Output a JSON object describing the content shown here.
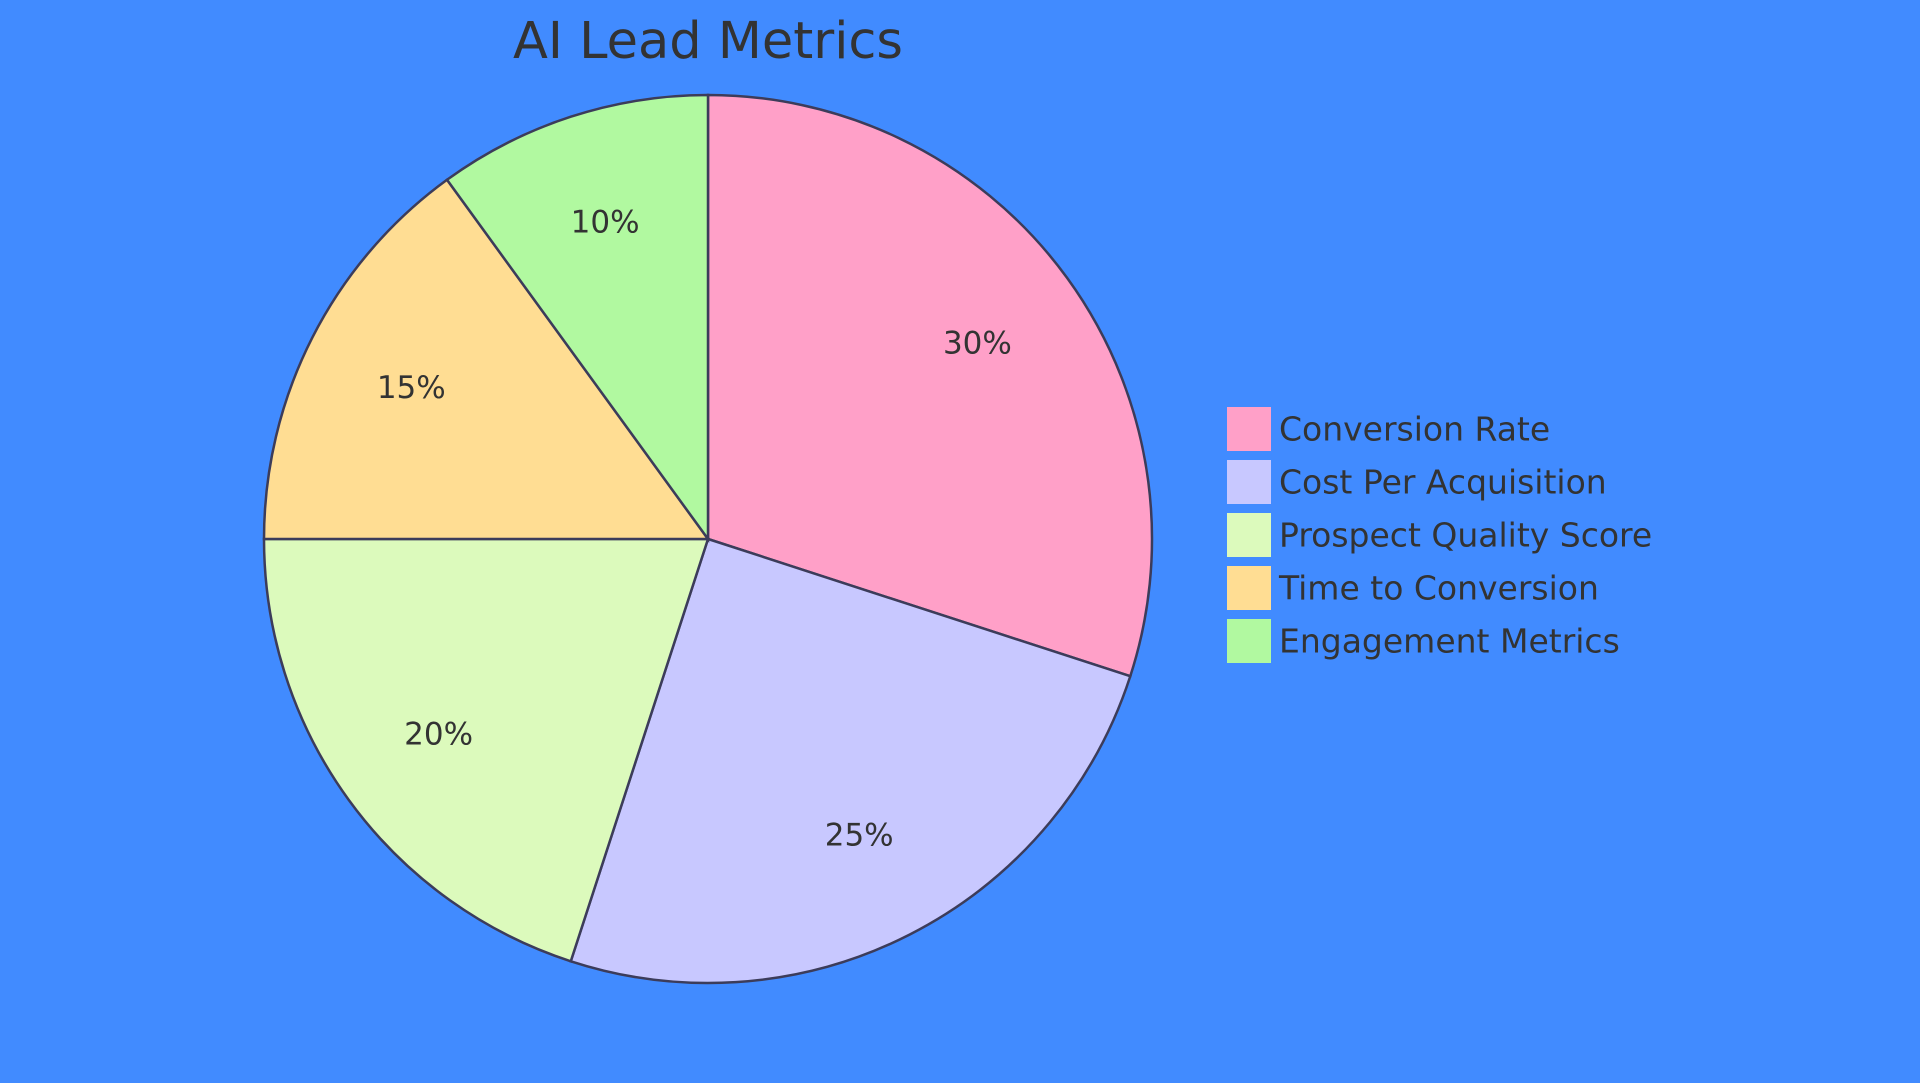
{
  "chart_data": {
    "type": "pie",
    "title": "AI Lead Metrics",
    "slices": [
      {
        "label": "Conversion Rate",
        "value": 30,
        "display": "30%",
        "color": "#ffa0c8"
      },
      {
        "label": "Cost Per Acquisition",
        "value": 25,
        "display": "25%",
        "color": "#c8c8ff"
      },
      {
        "label": "Prospect Quality Score",
        "value": 20,
        "display": "20%",
        "color": "#dcfabc"
      },
      {
        "label": "Time to Conversion",
        "value": 15,
        "display": "15%",
        "color": "#ffdd93"
      },
      {
        "label": "Engagement Metrics",
        "value": 10,
        "display": "10%",
        "color": "#b1f9a0"
      }
    ],
    "legend_position": "right",
    "background": "#418bff",
    "stroke_color": "#3c3c5a",
    "text_color": "#333333"
  }
}
